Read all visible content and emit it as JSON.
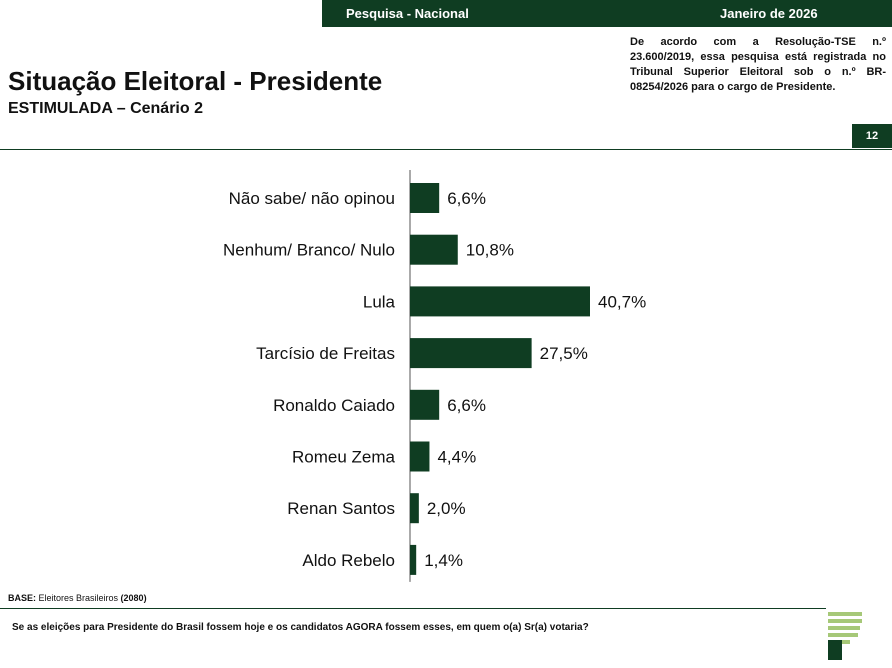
{
  "header": {
    "survey_label": "Pesquisa - Nacional",
    "date_label": "Janeiro de 2026",
    "tse_note": "De acordo com a Resolução-TSE n.º 23.600/2019, essa pesquisa está registrada no Tribunal Superior Eleitoral sob o n.º BR-08254/2026 para o cargo de Presidente.",
    "title": "Situação Eleitoral - Presidente",
    "subtitle": "ESTIMULADA – Cenário 2",
    "page_number": "12"
  },
  "footer": {
    "base_label": "BASE:",
    "base_text": " Eleitores Brasileiros ",
    "base_count": "(2080)",
    "question": "Se as eleições para Presidente do Brasil fossem hoje e os candidatos AGORA fossem esses, em quem o(a) Sr(a) votaria?"
  },
  "colors": {
    "brand_green": "#0f3d22",
    "bar": "#0f3d22",
    "logo_light": "#a6c878"
  },
  "chart_data": {
    "type": "bar",
    "orientation": "horizontal",
    "categories": [
      "Não sabe/ não opinou",
      "Nenhum/ Branco/ Nulo",
      "Lula",
      "Tarcísio de Freitas",
      "Ronaldo Caiado",
      "Romeu Zema",
      "Renan Santos",
      "Aldo Rebelo"
    ],
    "values": [
      6.6,
      10.8,
      40.7,
      27.5,
      6.6,
      4.4,
      2.0,
      1.4
    ],
    "value_labels": [
      "6,6%",
      "10,8%",
      "40,7%",
      "27,5%",
      "6,6%",
      "4,4%",
      "2,0%",
      "1,4%"
    ],
    "title": "",
    "xlabel": "",
    "ylabel": "",
    "xlim": [
      0,
      40.7
    ],
    "grid": false,
    "legend": "none"
  }
}
